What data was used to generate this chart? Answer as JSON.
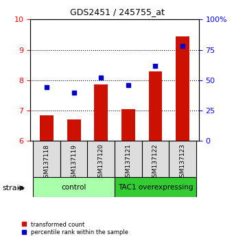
{
  "title": "GDS2451 / 245755_at",
  "samples": [
    "GSM137118",
    "GSM137119",
    "GSM137120",
    "GSM137121",
    "GSM137122",
    "GSM137123"
  ],
  "transformed_counts": [
    6.85,
    6.7,
    7.85,
    7.05,
    8.3,
    9.45
  ],
  "percentile_ranks": [
    44,
    40,
    52,
    46,
    62,
    78
  ],
  "ylim_left": [
    6,
    10
  ],
  "ylim_right": [
    0,
    100
  ],
  "yticks_left": [
    6,
    7,
    8,
    9,
    10
  ],
  "yticks_right": [
    0,
    25,
    50,
    75,
    100
  ],
  "bar_color": "#CC1100",
  "dot_color": "#0000CC",
  "control_group": [
    "GSM137118",
    "GSM137119",
    "GSM137120"
  ],
  "tac1_group": [
    "GSM137121",
    "GSM137122",
    "GSM137123"
  ],
  "control_label": "control",
  "tac1_label": "TAC1 overexpressing",
  "control_bg": "#CCFFCC",
  "tac1_bg": "#44DD44",
  "strain_label": "strain",
  "legend_bar": "transformed count",
  "legend_dot": "percentile rank within the sample",
  "bar_bottom": 6,
  "bar_width": 0.5
}
